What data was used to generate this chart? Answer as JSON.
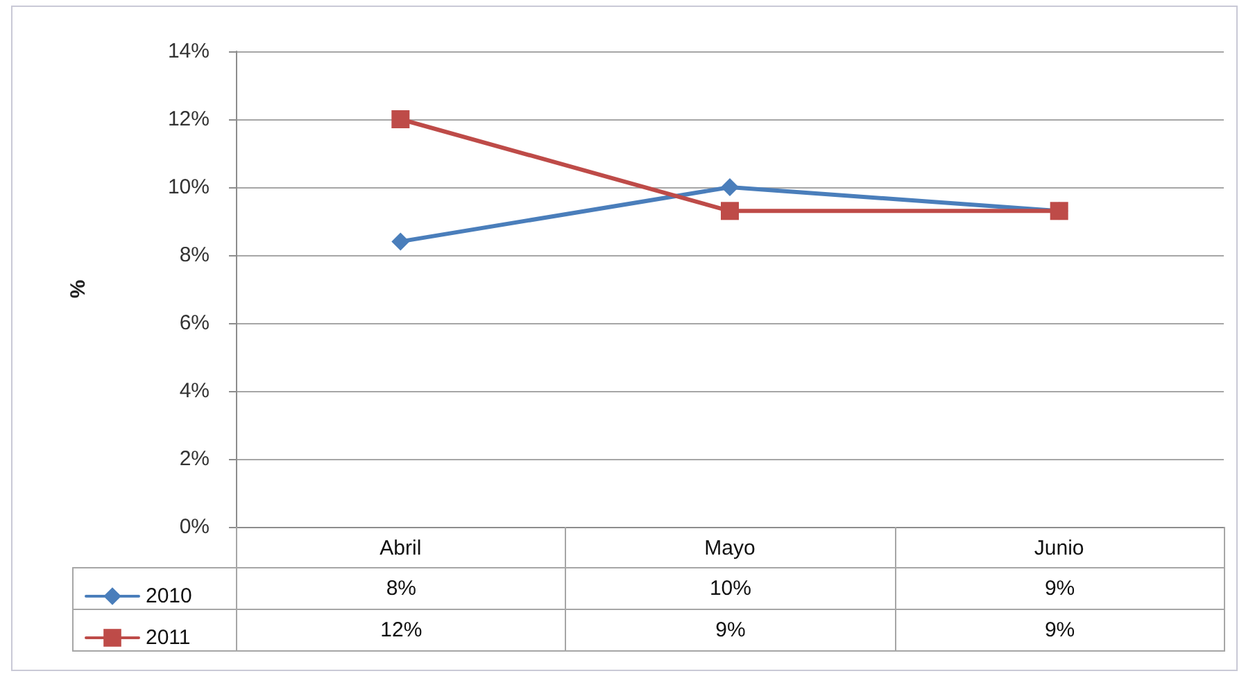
{
  "chart_data": {
    "type": "line",
    "ylabel": "%",
    "categories": [
      "Abril",
      "Mayo",
      "Junio"
    ],
    "series": [
      {
        "name": "2010",
        "color": "#4a7ebb",
        "marker": "diamond",
        "values": [
          8.4,
          10,
          9.3
        ],
        "value_labels": [
          "8%",
          "10%",
          "9%"
        ]
      },
      {
        "name": "2011",
        "color": "#be4b48",
        "marker": "square",
        "values": [
          12,
          9.3,
          9.3
        ],
        "value_labels": [
          "12%",
          "9%",
          "9%"
        ]
      }
    ],
    "ylim": [
      0,
      14
    ],
    "yticks": [
      {
        "value": 0,
        "label": "0%"
      },
      {
        "value": 2,
        "label": "2%"
      },
      {
        "value": 4,
        "label": "4%"
      },
      {
        "value": 6,
        "label": "6%"
      },
      {
        "value": 8,
        "label": "8%"
      },
      {
        "value": 10,
        "label": "10%"
      },
      {
        "value": 12,
        "label": "12%"
      },
      {
        "value": 14,
        "label": "14%"
      }
    ],
    "grid": "y",
    "legend": "bottom left",
    "line_style": "solid"
  }
}
